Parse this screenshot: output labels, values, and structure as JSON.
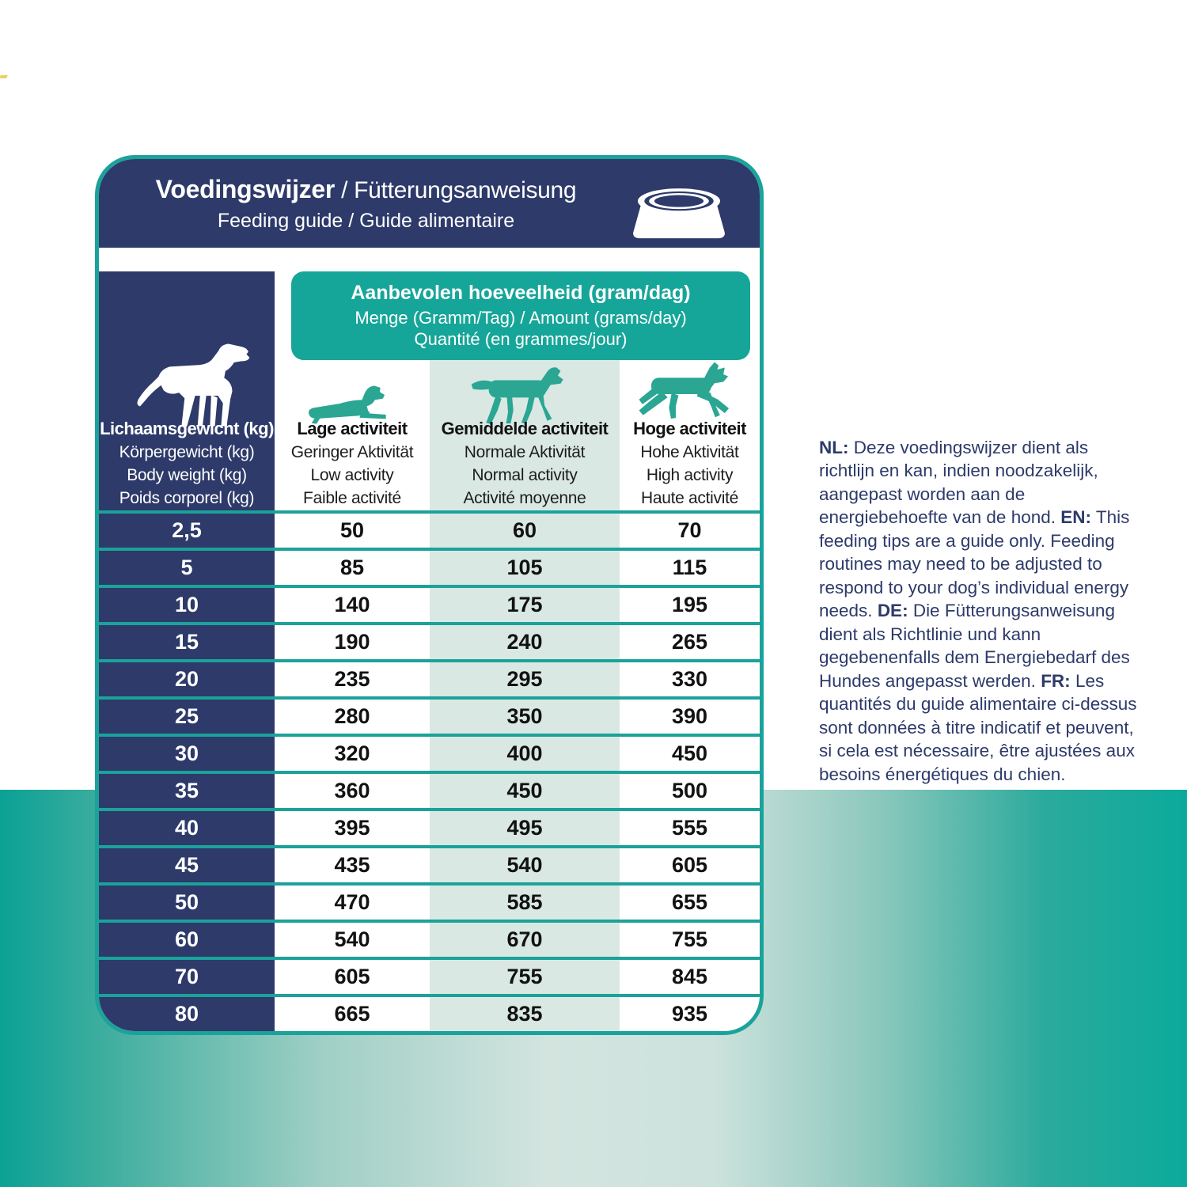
{
  "card": {
    "title_bold": "Voedingswijzer",
    "title_rest": " / Fütterungsanweisung",
    "subtitle": "Feeding guide / Guide alimentaire",
    "amount_box": {
      "line1": "Aanbevolen hoeveelheid (gram/dag)",
      "line2": "Menge (Gramm/Tag) / Amount (grams/day)",
      "line3": "Quantité (en grammes/jour)"
    },
    "weight_header": {
      "line1": "Lichaamsgewicht (kg)",
      "line2": "Körpergewicht (kg)",
      "line3": "Body weight (kg)",
      "line4": "Poids corporel (kg)"
    },
    "columns": [
      {
        "line1": "Lage activiteit",
        "line2": "Geringer Aktivität",
        "line3": "Low activity",
        "line4": "Faible activité"
      },
      {
        "line1": "Gemiddelde activiteit",
        "line2": "Normale Aktivität",
        "line3": "Normal activity",
        "line4": "Activité moyenne"
      },
      {
        "line1": "Hoge activiteit",
        "line2": "Hohe Aktivität",
        "line3": "High activity",
        "line4": "Haute activité"
      }
    ]
  },
  "table": {
    "rows": [
      {
        "weight": "2,5",
        "low": "50",
        "normal": "60",
        "high": "70"
      },
      {
        "weight": "5",
        "low": "85",
        "normal": "105",
        "high": "115"
      },
      {
        "weight": "10",
        "low": "140",
        "normal": "175",
        "high": "195"
      },
      {
        "weight": "15",
        "low": "190",
        "normal": "240",
        "high": "265"
      },
      {
        "weight": "20",
        "low": "235",
        "normal": "295",
        "high": "330"
      },
      {
        "weight": "25",
        "low": "280",
        "normal": "350",
        "high": "390"
      },
      {
        "weight": "30",
        "low": "320",
        "normal": "400",
        "high": "450"
      },
      {
        "weight": "35",
        "low": "360",
        "normal": "450",
        "high": "500"
      },
      {
        "weight": "40",
        "low": "395",
        "normal": "495",
        "high": "555"
      },
      {
        "weight": "45",
        "low": "435",
        "normal": "540",
        "high": "605"
      },
      {
        "weight": "50",
        "low": "470",
        "normal": "585",
        "high": "655"
      },
      {
        "weight": "60",
        "low": "540",
        "normal": "670",
        "high": "755"
      },
      {
        "weight": "70",
        "low": "605",
        "normal": "755",
        "high": "845"
      },
      {
        "weight": "80",
        "low": "665",
        "normal": "835",
        "high": "935"
      }
    ]
  },
  "note": {
    "segments": [
      {
        "bold": "NL:",
        "text": " Deze voedingswijzer dient als richtlijn en kan, indien noodzakelijk, aangepast worden aan de energiebehoefte van de hond. "
      },
      {
        "bold": "EN:",
        "text": " This feeding tips are a guide only. Feeding routines may need to be adjusted to respond to your dog’s individual energy needs. "
      },
      {
        "bold": "DE:",
        "text": " Die Fütterungsanweisung dient als Richtlinie und kann gegebenenfalls dem Energiebedarf des Hundes angepasst werden. "
      },
      {
        "bold": "FR:",
        "text": " Les quantités du guide alimentaire ci-dessus sont données à titre indicatif et peuvent, si cela est nécessaire, être ajustées aux besoins énergétiques du chien."
      }
    ]
  },
  "colors": {
    "navy": "#2d3a6a",
    "teal_box": "#16a699",
    "teal_border": "#1ba29b",
    "light_teal_column": "#d9e8e3",
    "dog_icon_teal": "#2aa693",
    "note_text": "#2d3a6a",
    "gradient_left": "#0ba195",
    "gradient_middle": "#d3e4df",
    "gradient_right": "#0caa9c"
  }
}
